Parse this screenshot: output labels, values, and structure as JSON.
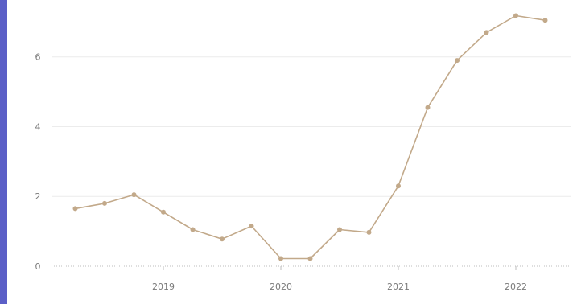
{
  "chart_data": {
    "type": "line",
    "title": "",
    "xlabel": "",
    "ylabel": "",
    "x_ticks": [
      "2019",
      "2020",
      "2021",
      "2022"
    ],
    "y_ticks": [
      "0",
      "2",
      "4",
      "6"
    ],
    "ylim": [
      0,
      7.4
    ],
    "grid": true,
    "series": [
      {
        "color": "#c2a98a",
        "x": [
          "2018-04",
          "2018-07",
          "2018-10",
          "2019-01",
          "2019-04",
          "2019-07",
          "2019-10",
          "2020-01",
          "2020-04",
          "2020-07",
          "2020-10",
          "2021-01",
          "2021-04",
          "2021-07",
          "2021-10",
          "2022-01",
          "2022-04"
        ],
        "values": [
          1.65,
          1.8,
          2.05,
          1.55,
          1.05,
          0.78,
          1.15,
          0.22,
          0.22,
          1.05,
          0.97,
          2.3,
          4.55,
          5.9,
          6.7,
          7.18,
          7.05
        ]
      }
    ]
  }
}
